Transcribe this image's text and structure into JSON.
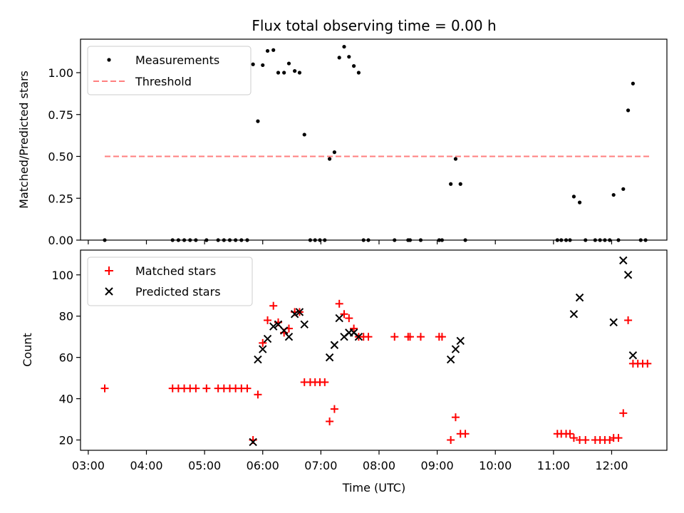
{
  "chart_data": [
    {
      "type": "scatter",
      "title": "Flux total observing time = 0.00 h",
      "xlabel": "",
      "ylabel": "Matched/Predicted stars",
      "xlim": [
        "02:52",
        "12:57"
      ],
      "ylim": [
        0,
        1.2
      ],
      "grid": false,
      "legend": "top-left",
      "x_ticks": [
        "03:00",
        "04:00",
        "05:00",
        "06:00",
        "07:00",
        "08:00",
        "09:00",
        "10:00",
        "11:00",
        "12:00"
      ],
      "y_ticks": [
        "0.00",
        "0.25",
        "0.50",
        "0.75",
        "1.00"
      ],
      "series": [
        {
          "name": "Measurements",
          "marker": "dot",
          "color": "#000000",
          "points": [
            [
              "03:17",
              0
            ],
            [
              "04:27",
              0
            ],
            [
              "04:33",
              0
            ],
            [
              "04:39",
              0
            ],
            [
              "04:45",
              0
            ],
            [
              "04:51",
              0
            ],
            [
              "05:02",
              0
            ],
            [
              "05:14",
              0
            ],
            [
              "05:20",
              0
            ],
            [
              "05:26",
              0
            ],
            [
              "05:32",
              0
            ],
            [
              "05:38",
              0
            ],
            [
              "05:44",
              0
            ],
            [
              "05:50",
              1.05
            ],
            [
              "05:55",
              0.71
            ],
            [
              "06:00",
              1.045
            ],
            [
              "06:05",
              1.13
            ],
            [
              "06:11",
              1.135
            ],
            [
              "06:16",
              1.0
            ],
            [
              "06:22",
              1.0
            ],
            [
              "06:27",
              1.055
            ],
            [
              "06:33",
              1.01
            ],
            [
              "06:38",
              1.0
            ],
            [
              "06:43",
              0.63
            ],
            [
              "06:49",
              0
            ],
            [
              "06:54",
              0
            ],
            [
              "06:59",
              0
            ],
            [
              "07:04",
              0
            ],
            [
              "07:09",
              0.485
            ],
            [
              "07:14",
              0.525
            ],
            [
              "07:19",
              1.09
            ],
            [
              "07:24",
              1.155
            ],
            [
              "07:29",
              1.095
            ],
            [
              "07:34",
              1.04
            ],
            [
              "07:39",
              1.0
            ],
            [
              "07:44",
              0
            ],
            [
              "07:49",
              0
            ],
            [
              "08:16",
              0
            ],
            [
              "08:30",
              0
            ],
            [
              "08:32",
              0
            ],
            [
              "08:43",
              0
            ],
            [
              "09:02",
              0
            ],
            [
              "09:05",
              0
            ],
            [
              "09:14",
              0.335
            ],
            [
              "09:19",
              0.485
            ],
            [
              "09:24",
              0.335
            ],
            [
              "09:29",
              0
            ],
            [
              "11:04",
              0
            ],
            [
              "11:08",
              0
            ],
            [
              "11:13",
              0
            ],
            [
              "11:17",
              0
            ],
            [
              "11:21",
              0.26
            ],
            [
              "11:27",
              0.225
            ],
            [
              "11:33",
              0
            ],
            [
              "11:43",
              0
            ],
            [
              "11:48",
              0
            ],
            [
              "11:53",
              0
            ],
            [
              "11:58",
              0
            ],
            [
              "12:02",
              0.27
            ],
            [
              "12:07",
              0
            ],
            [
              "12:12",
              0.305
            ],
            [
              "12:17",
              0.775
            ],
            [
              "12:22",
              0.935
            ],
            [
              "12:30",
              0
            ],
            [
              "12:35",
              0
            ]
          ]
        },
        {
          "name": "Threshold",
          "marker": "dashed-line",
          "color": "#ff7f7f",
          "points": [
            [
              "03:17",
              0.5
            ],
            [
              "12:40",
              0.5
            ]
          ]
        }
      ]
    },
    {
      "type": "scatter",
      "title": "",
      "xlabel": "Time (UTC)",
      "ylabel": "Count",
      "xlim": [
        "02:52",
        "12:57"
      ],
      "ylim": [
        15,
        112
      ],
      "grid": false,
      "legend": "top-left",
      "x_ticks": [
        "03:00",
        "04:00",
        "05:00",
        "06:00",
        "07:00",
        "08:00",
        "09:00",
        "10:00",
        "11:00",
        "12:00"
      ],
      "y_ticks": [
        "20",
        "40",
        "60",
        "80",
        "100"
      ],
      "series": [
        {
          "name": "Matched stars",
          "marker": "plus",
          "color": "#ff0000",
          "points": [
            [
              "03:17",
              45
            ],
            [
              "04:27",
              45
            ],
            [
              "04:33",
              45
            ],
            [
              "04:39",
              45
            ],
            [
              "04:45",
              45
            ],
            [
              "04:51",
              45
            ],
            [
              "05:02",
              45
            ],
            [
              "05:14",
              45
            ],
            [
              "05:20",
              45
            ],
            [
              "05:26",
              45
            ],
            [
              "05:32",
              45
            ],
            [
              "05:38",
              45
            ],
            [
              "05:44",
              45
            ],
            [
              "05:50",
              20
            ],
            [
              "05:55",
              42
            ],
            [
              "06:00",
              67
            ],
            [
              "06:05",
              78
            ],
            [
              "06:11",
              85
            ],
            [
              "06:16",
              77
            ],
            [
              "06:22",
              72
            ],
            [
              "06:27",
              74
            ],
            [
              "06:33",
              82
            ],
            [
              "06:38",
              82
            ],
            [
              "06:43",
              48
            ],
            [
              "06:49",
              48
            ],
            [
              "06:54",
              48
            ],
            [
              "06:59",
              48
            ],
            [
              "07:04",
              48
            ],
            [
              "07:09",
              29
            ],
            [
              "07:14",
              35
            ],
            [
              "07:19",
              86
            ],
            [
              "07:24",
              81
            ],
            [
              "07:29",
              79
            ],
            [
              "07:34",
              74
            ],
            [
              "07:39",
              70
            ],
            [
              "07:44",
              70
            ],
            [
              "07:49",
              70
            ],
            [
              "08:16",
              70
            ],
            [
              "08:30",
              70
            ],
            [
              "08:32",
              70
            ],
            [
              "08:43",
              70
            ],
            [
              "09:02",
              70
            ],
            [
              "09:05",
              70
            ],
            [
              "09:14",
              20
            ],
            [
              "09:19",
              31
            ],
            [
              "09:24",
              23
            ],
            [
              "09:29",
              23
            ],
            [
              "11:04",
              23
            ],
            [
              "11:08",
              23
            ],
            [
              "11:13",
              23
            ],
            [
              "11:17",
              23
            ],
            [
              "11:21",
              21
            ],
            [
              "11:27",
              20
            ],
            [
              "11:33",
              20
            ],
            [
              "11:43",
              20
            ],
            [
              "11:48",
              20
            ],
            [
              "11:53",
              20
            ],
            [
              "11:58",
              20
            ],
            [
              "12:02",
              21
            ],
            [
              "12:07",
              21
            ],
            [
              "12:12",
              33
            ],
            [
              "12:17",
              78
            ],
            [
              "12:22",
              57
            ],
            [
              "12:27",
              57
            ],
            [
              "12:32",
              57
            ],
            [
              "12:37",
              57
            ]
          ]
        },
        {
          "name": "Predicted stars",
          "marker": "x",
          "color": "#000000",
          "points": [
            [
              "05:50",
              19
            ],
            [
              "05:55",
              59
            ],
            [
              "06:00",
              64
            ],
            [
              "06:05",
              69
            ],
            [
              "06:11",
              75
            ],
            [
              "06:16",
              76
            ],
            [
              "06:22",
              73
            ],
            [
              "06:27",
              70
            ],
            [
              "06:33",
              81
            ],
            [
              "06:38",
              82
            ],
            [
              "06:43",
              76
            ],
            [
              "07:09",
              60
            ],
            [
              "07:14",
              66
            ],
            [
              "07:19",
              79
            ],
            [
              "07:24",
              70
            ],
            [
              "07:29",
              72
            ],
            [
              "07:34",
              72
            ],
            [
              "07:39",
              70
            ],
            [
              "09:14",
              59
            ],
            [
              "09:19",
              64
            ],
            [
              "09:24",
              68
            ],
            [
              "11:21",
              81
            ],
            [
              "11:27",
              89
            ],
            [
              "12:02",
              77
            ],
            [
              "12:12",
              107
            ],
            [
              "12:17",
              100
            ],
            [
              "12:22",
              61
            ]
          ]
        }
      ]
    }
  ]
}
